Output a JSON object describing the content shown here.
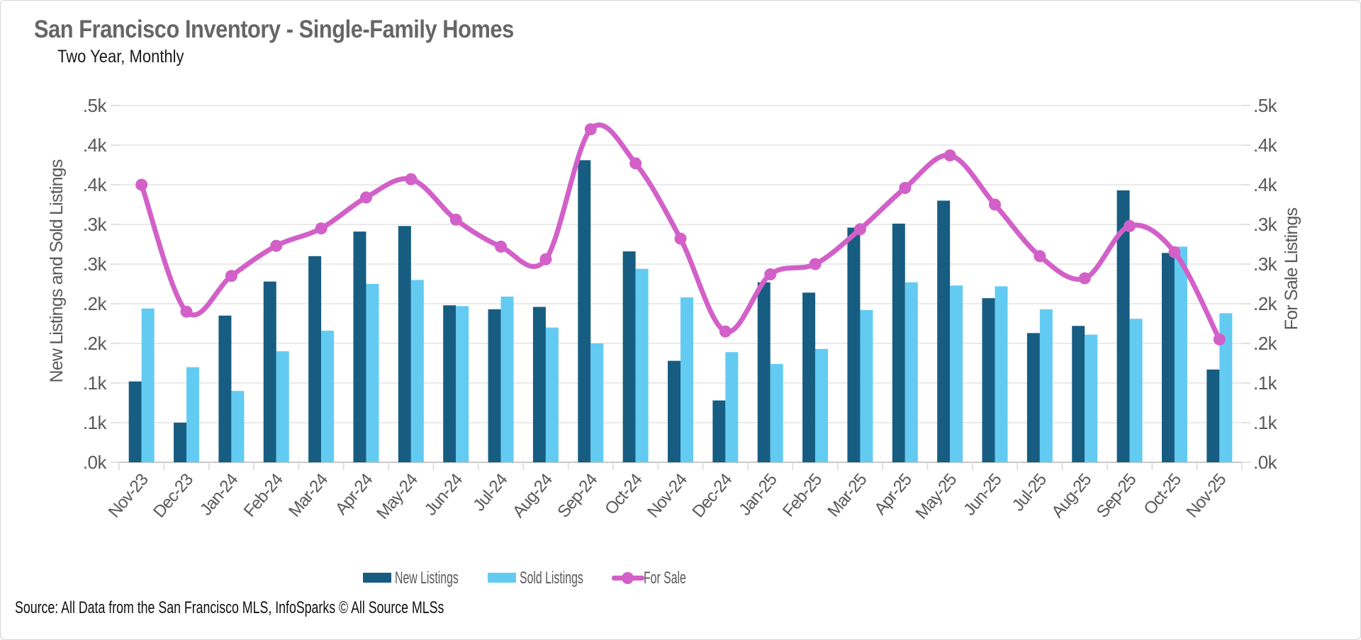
{
  "window": {
    "background": "#ffffff",
    "border_color": "#d4d4d4"
  },
  "header": {
    "title": "San Francisco Inventory - Single-Family Homes",
    "subtitle": "Two Year, Monthly"
  },
  "chart_data": {
    "type": "bar",
    "title": "San Francisco Inventory - Single-Family Homes",
    "subtitle": "Two Year, Monthly",
    "categories": [
      "Nov-23",
      "Dec-23",
      "Jan-24",
      "Feb-24",
      "Mar-24",
      "Apr-24",
      "May-24",
      "Jun-24",
      "Jul-24",
      "Aug-24",
      "Sep-24",
      "Oct-24",
      "Nov-24",
      "Dec-24",
      "Jan-25",
      "Feb-25",
      "Mar-25",
      "Apr-25",
      "May-25",
      "Jun-25",
      "Jul-25",
      "Aug-25",
      "Sep-25",
      "Oct-25",
      "Nov-25"
    ],
    "series": [
      {
        "name": "New Listings",
        "type": "bar",
        "color": "#175d82",
        "values": [
          102,
          50,
          185,
          228,
          260,
          291,
          298,
          198,
          193,
          196,
          381,
          266,
          128,
          78,
          227,
          214,
          296,
          301,
          330,
          207,
          163,
          172,
          343,
          264,
          117
        ]
      },
      {
        "name": "Sold Listings",
        "type": "bar",
        "color": "#63cbf2",
        "values": [
          194,
          120,
          90,
          140,
          166,
          225,
          230,
          197,
          209,
          170,
          150,
          244,
          208,
          139,
          124,
          143,
          192,
          227,
          223,
          222,
          193,
          161,
          181,
          272,
          188
        ]
      },
      {
        "name": "For Sale",
        "type": "line",
        "color": "#d260c8",
        "values": [
          350,
          190,
          235,
          273,
          295,
          334,
          357,
          306,
          272,
          256,
          420,
          377,
          282,
          165,
          237,
          250,
          294,
          346,
          387,
          325,
          260,
          232,
          298,
          265,
          155
        ]
      }
    ],
    "left_axis": {
      "title": "New Listings and Sold Listings",
      "min": 0,
      "max": 450,
      "step": 50,
      "tick_labels_bottom_to_top": [
        ".0k",
        ".1k",
        ".1k",
        ".2k",
        ".2k",
        ".3k",
        ".3k",
        ".4k",
        ".4k",
        ".5k"
      ]
    },
    "right_axis": {
      "title": "For Sale Listings",
      "min": 0,
      "max": 450,
      "step": 50,
      "tick_labels_bottom_to_top": [
        ".0k",
        ".1k",
        ".1k",
        ".2k",
        ".2k",
        ".3k",
        ".3k",
        ".4k",
        ".4k",
        ".5k"
      ]
    },
    "grid": true,
    "legend_position": "bottom",
    "colors": {
      "gridline": "#e3e3e3",
      "baseline": "#c9c9c9",
      "tick": "#d9d9d9",
      "axis_text": "#595959"
    }
  },
  "legend": {
    "items": [
      {
        "label": "New Listings",
        "marker": "bar-swatch",
        "color": "#175d82"
      },
      {
        "label": "Sold Listings",
        "marker": "bar-swatch",
        "color": "#63cbf2"
      },
      {
        "label": "For Sale",
        "marker": "line-marker",
        "color": "#d260c8"
      }
    ]
  },
  "source": {
    "text": "Source: All Data from the San Francisco MLS, InfoSparks © All Source MLSs"
  }
}
